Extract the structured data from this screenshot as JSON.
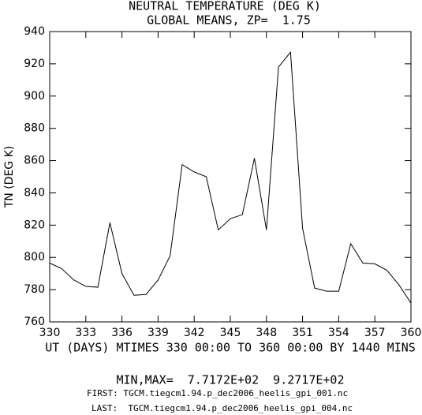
{
  "chart_data": {
    "type": "line",
    "title": "NEUTRAL TEMPERATURE (DEG K)",
    "subtitle": "GLOBAL MEANS, ZP=  1.75",
    "ylabel": "TN (DEG K)",
    "xlabel": "UT (DAYS) MTIMES 330 00:00 TO 360 00:00 BY 1440 MINS",
    "annotations": [
      "MIN,MAX=  7.7172E+02  9.2717E+02",
      "FIRST: TGCM.tiegcm1.94.p_dec2006_heelis_gpi_001.nc",
      "LAST:  TGCM.tiegcm1.94.p_dec2006_heelis_gpi_004.nc"
    ],
    "x": [
      330,
      331,
      332,
      333,
      334,
      335,
      336,
      337,
      338,
      339,
      340,
      341,
      342,
      343,
      344,
      345,
      346,
      347,
      348,
      349,
      350,
      351,
      352,
      353,
      354,
      355,
      356,
      357,
      358,
      359,
      360
    ],
    "values": [
      796.5,
      793,
      786,
      782,
      781.5,
      821.5,
      790,
      776.5,
      777,
      786,
      801,
      857.5,
      853,
      850,
      817,
      824,
      826.5,
      861.5,
      817,
      918,
      927.17,
      818,
      781,
      779,
      779,
      808.5,
      796.5,
      796,
      792,
      783,
      771.72
    ],
    "color": "#000000",
    "xlim": [
      330,
      360
    ],
    "xticks": [
      330,
      333,
      336,
      339,
      342,
      345,
      348,
      351,
      354,
      357,
      360
    ],
    "ylim": [
      760,
      940
    ],
    "yticks": [
      760,
      780,
      800,
      820,
      840,
      860,
      880,
      900,
      920,
      940
    ],
    "grid": false
  }
}
